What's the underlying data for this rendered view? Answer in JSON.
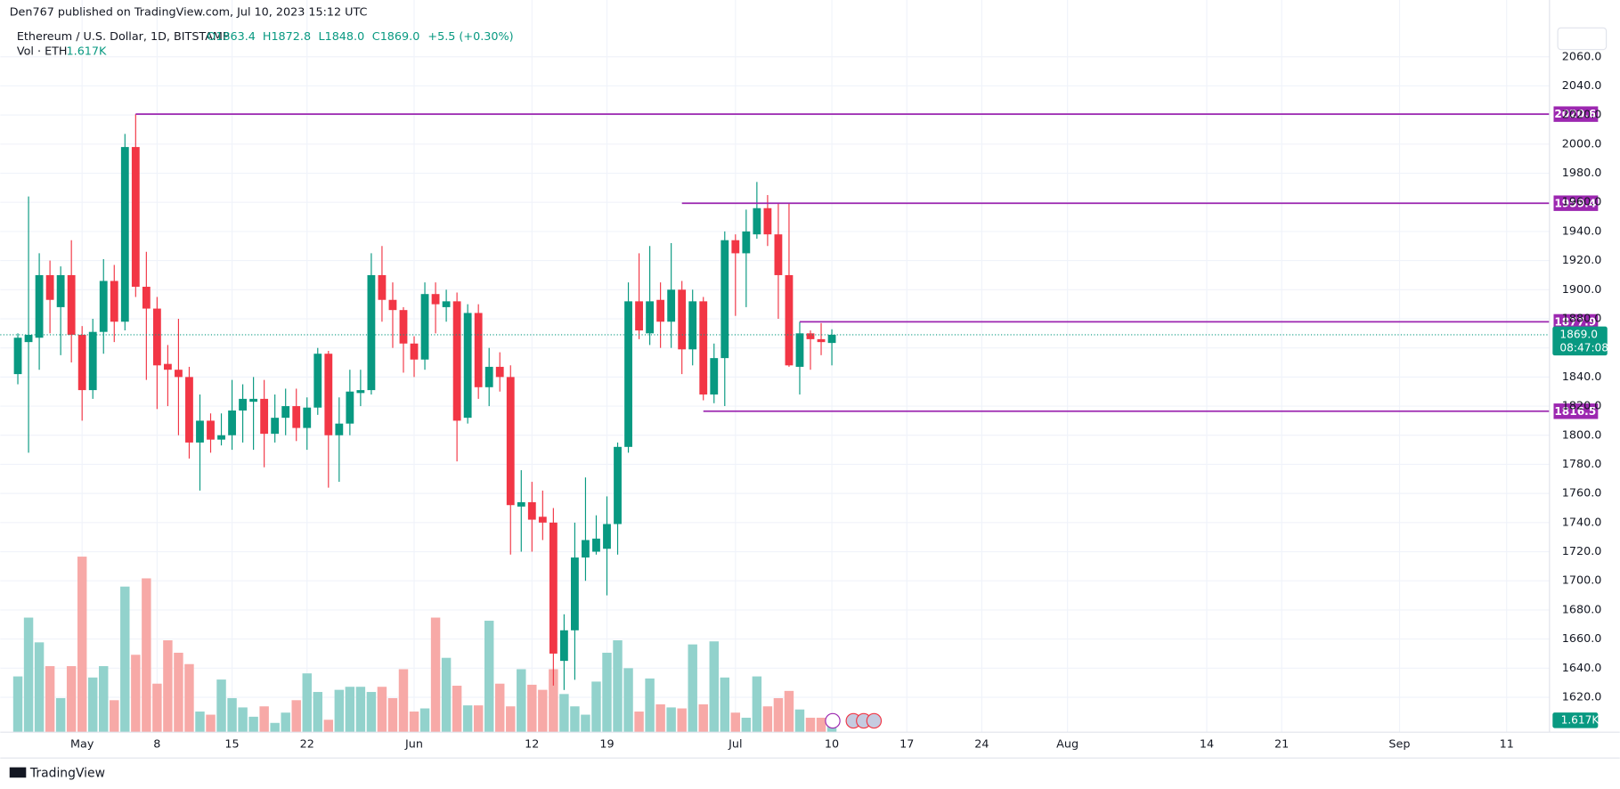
{
  "header": {
    "published": "Den767 published on TradingView.com, Jul 10, 2023 15:12 UTC"
  },
  "chart_data": {
    "type": "candlestick",
    "symbol": "Ethereum / U.S. Dollar, 1D, BITSTAMP",
    "ohlc_legend": {
      "open": "O1863.4",
      "high": "H1872.8",
      "low": "L1848.0",
      "close": "C1869.0",
      "change": "+5.5 (+0.30%)"
    },
    "volume_legend": {
      "name": "Vol · ETH",
      "value": "1.617K"
    },
    "open": [
      1842,
      1864,
      1867,
      1910,
      1888,
      1910,
      1869,
      1831,
      1871,
      1906,
      1878,
      1998,
      1902,
      1887,
      1849,
      1845,
      1840,
      1795,
      1810,
      1797,
      1800,
      1817,
      1823,
      1825,
      1801,
      1812,
      1820,
      1805,
      1819,
      1856,
      1800,
      1808,
      1829,
      1831,
      1910,
      1893,
      1886,
      1863,
      1852,
      1897,
      1888,
      1892,
      1812,
      1884,
      1833,
      1847,
      1840,
      1751,
      1754,
      1744,
      1740,
      1645,
      1666,
      1716,
      1720,
      1722,
      1739,
      1792,
      1892,
      1870,
      1893,
      1878,
      1900,
      1859,
      1892,
      1828,
      1853,
      1934,
      1925,
      1938,
      1956,
      1938,
      1910,
      1847,
      1870,
      1866,
      1863.4
    ],
    "high": [
      1870,
      1964,
      1925,
      1920,
      1916,
      1934,
      1875,
      1880,
      1921,
      1917,
      2007,
      2020.6,
      1926,
      1895,
      1862,
      1880,
      1847,
      1828,
      1815,
      1815,
      1838,
      1835,
      1840,
      1838,
      1828,
      1832,
      1832,
      1826,
      1860,
      1858,
      1826,
      1845,
      1845,
      1925,
      1930,
      1905,
      1888,
      1868,
      1905,
      1905,
      1900,
      1898,
      1890,
      1890,
      1860,
      1857,
      1848,
      1776,
      1768,
      1762,
      1750,
      1677,
      1740,
      1771,
      1745,
      1758,
      1795,
      1905,
      1925,
      1930,
      1905,
      1932,
      1906,
      1900,
      1895,
      1863,
      1940,
      1938,
      1955,
      1974,
      1965,
      1959,
      1959.4,
      1877.9,
      1872,
      1877,
      1872.8
    ],
    "low": [
      1835,
      1788,
      1845,
      1870,
      1855,
      1850,
      1810,
      1825,
      1856,
      1864,
      1872,
      1895,
      1838,
      1818,
      1820,
      1800,
      1784,
      1762,
      1788,
      1793,
      1790,
      1795,
      1790,
      1778,
      1795,
      1800,
      1796,
      1790,
      1814,
      1764,
      1768,
      1800,
      1820,
      1828,
      1878,
      1860,
      1843,
      1840,
      1845,
      1870,
      1878,
      1782,
      1808,
      1825,
      1820,
      1830,
      1718,
      1720,
      1720,
      1728,
      1628,
      1625,
      1632,
      1700,
      1718,
      1690,
      1718,
      1788,
      1866,
      1862,
      1860,
      1860,
      1842,
      1848,
      1824,
      1822,
      1820,
      1882,
      1888,
      1935,
      1930,
      1880,
      1847,
      1828,
      1845,
      1855,
      1848.0
    ],
    "close": [
      1867,
      1869,
      1910,
      1893,
      1910,
      1869,
      1831,
      1871,
      1906,
      1878,
      1998,
      1902,
      1887,
      1848,
      1845,
      1840,
      1795,
      1810,
      1797,
      1800,
      1817,
      1825,
      1825,
      1801,
      1812,
      1820,
      1805,
      1819,
      1856,
      1800,
      1808,
      1830,
      1831,
      1910,
      1893,
      1886,
      1863,
      1852,
      1897,
      1890,
      1892,
      1810,
      1884,
      1833,
      1847,
      1840,
      1752,
      1754,
      1742,
      1740,
      1650,
      1666,
      1716,
      1728,
      1729,
      1739,
      1792,
      1892,
      1872,
      1892,
      1878,
      1900,
      1859,
      1892,
      1828,
      1853,
      1934,
      1925,
      1940,
      1956,
      1938,
      1910,
      1848,
      1870,
      1866,
      1864,
      1869.0
    ],
    "volume": [
      6240,
      12820,
      10050,
      7390,
      3810,
      7390,
      19640,
      6120,
      7390,
      3580,
      16290,
      8660,
      17210,
      5430,
      10280,
      8890,
      7620,
      2310,
      1960,
      5890,
      3810,
      2770,
      1730,
      2890,
      1040,
      2190,
      3580,
      6580,
      4500,
      1390,
      4740,
      5080,
      5080,
      4500,
      5080,
      3810,
      7050,
      2310,
      2660,
      12820,
      8320,
      5200,
      3000,
      3000,
      12470,
      5430,
      2890,
      7050,
      5310,
      4740,
      7050,
      4270,
      2890,
      1960,
      5660,
      8890,
      10280,
      7160,
      2310,
      6010,
      3120,
      2770,
      2660,
      9820,
      3120,
      10160,
      6120,
      2190,
      1620,
      6240,
      2890,
      3810,
      4620,
      2540,
      1620,
      1620,
      1617
    ],
    "up_color": "#089981",
    "down_color": "#f23645",
    "volume_up_color": "#92d2cc",
    "volume_down_color": "#f7a9a7",
    "level_color": "#9c27b0",
    "ylim": [
      1596,
      2099
    ],
    "xlim": [
      -1.64,
      143
    ],
    "yticks": [
      {
        "value": 1620,
        "label": "1620.0"
      },
      {
        "value": 1640,
        "label": "1640.0"
      },
      {
        "value": 1660,
        "label": "1660.0"
      },
      {
        "value": 1680,
        "label": "1680.0"
      },
      {
        "value": 1700,
        "label": "1700.0"
      },
      {
        "value": 1720,
        "label": "1720.0"
      },
      {
        "value": 1740,
        "label": "1740.0"
      },
      {
        "value": 1760,
        "label": "1760.0"
      },
      {
        "value": 1780,
        "label": "1780.0"
      },
      {
        "value": 1800,
        "label": "1800.0"
      },
      {
        "value": 1820,
        "label": "1820.0"
      },
      {
        "value": 1840,
        "label": "1840.0"
      },
      {
        "value": 1860,
        "label": "1860.0"
      },
      {
        "value": 1880,
        "label": "1880.0"
      },
      {
        "value": 1900,
        "label": "1900.0"
      },
      {
        "value": 1920,
        "label": "1920.0"
      },
      {
        "value": 1940,
        "label": "1940.0"
      },
      {
        "value": 1960,
        "label": "1960.0"
      },
      {
        "value": 1980,
        "label": "1980.0"
      },
      {
        "value": 2000,
        "label": "2000.0"
      },
      {
        "value": 2020,
        "label": "2020.0"
      },
      {
        "value": 2040,
        "label": "2040.0"
      },
      {
        "value": 2060,
        "label": "2060.0"
      }
    ],
    "xticks": [
      {
        "value": 6,
        "label": "May"
      },
      {
        "value": 13,
        "label": "8"
      },
      {
        "value": 20,
        "label": "15"
      },
      {
        "value": 27,
        "label": "22"
      },
      {
        "value": 37,
        "label": "Jun"
      },
      {
        "value": 48,
        "label": "12"
      },
      {
        "value": 55,
        "label": "19"
      },
      {
        "value": 67,
        "label": "Jul"
      },
      {
        "value": 76,
        "label": "10"
      },
      {
        "value": 83,
        "label": "17"
      },
      {
        "value": 90,
        "label": "24"
      },
      {
        "value": 98,
        "label": "Aug"
      },
      {
        "value": 111,
        "label": "14"
      },
      {
        "value": 118,
        "label": "21"
      },
      {
        "value": 129,
        "label": "Sep"
      },
      {
        "value": 139,
        "label": "11"
      }
    ],
    "levels": [
      {
        "value": 2020.6,
        "start": 11
      },
      {
        "value": 1959.4,
        "start": 62
      },
      {
        "value": 1877.9,
        "start": 73
      },
      {
        "value": 1816.5,
        "start": 64
      }
    ],
    "last_price": {
      "value": 1869,
      "label": "1869.0",
      "countdown": "08:47:08"
    },
    "grid": true
  },
  "footer": {
    "brand": "TradingView"
  }
}
